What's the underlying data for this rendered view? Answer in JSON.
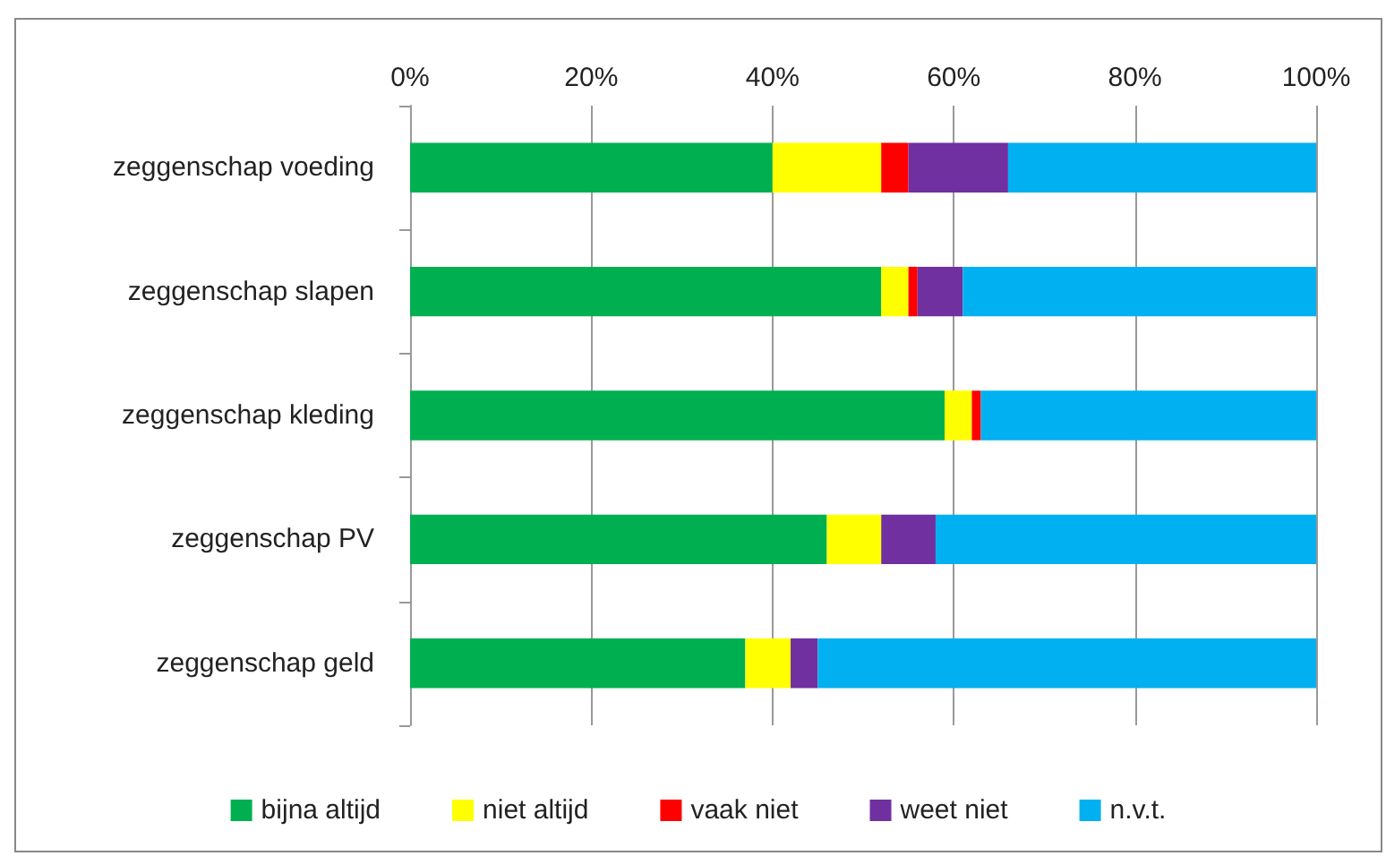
{
  "chart_data": {
    "type": "bar",
    "orientation": "horizontal",
    "stacked": true,
    "categories": [
      "zeggenschap voeding",
      "zeggenschap slapen",
      "zeggenschap kleding",
      "zeggenschap PV",
      "zeggenschap geld"
    ],
    "series": [
      {
        "name": "bijna altijd",
        "color": "#00b050",
        "values": [
          40,
          52,
          59,
          46,
          37
        ]
      },
      {
        "name": "niet altijd",
        "color": "#ffff00",
        "values": [
          12,
          3,
          3,
          6,
          5
        ]
      },
      {
        "name": "vaak niet",
        "color": "#ff0000",
        "values": [
          3,
          1,
          1,
          0,
          0
        ]
      },
      {
        "name": "weet niet",
        "color": "#7030a0",
        "values": [
          11,
          5,
          0,
          6,
          3
        ]
      },
      {
        "name": "n.v.t.",
        "color": "#00b0f0",
        "values": [
          34,
          39,
          37,
          42,
          55
        ]
      }
    ],
    "xlim": [
      0,
      100
    ],
    "xticks": [
      {
        "value": 0,
        "label": "0%"
      },
      {
        "value": 20,
        "label": "20%"
      },
      {
        "value": 40,
        "label": "40%"
      },
      {
        "value": 60,
        "label": "60%"
      },
      {
        "value": 80,
        "label": "80%"
      },
      {
        "value": 100,
        "label": "100%"
      }
    ],
    "grid": "x",
    "legend": "bottom"
  }
}
